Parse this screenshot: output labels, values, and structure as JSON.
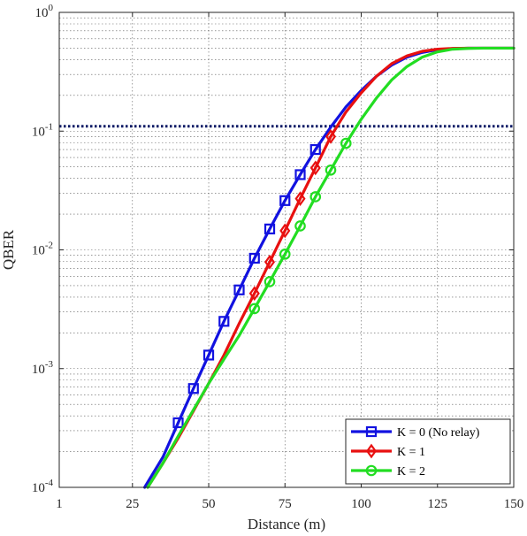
{
  "chart_data": {
    "type": "line",
    "xlabel": "Distance (m)",
    "ylabel": "QBER",
    "xlim": [
      1,
      150
    ],
    "ylim": [
      0.0001,
      1
    ],
    "yscale": "log",
    "grid": true,
    "legend_position": "bottom-right",
    "x_ticks": [
      {
        "value": 1,
        "label": "1"
      },
      {
        "value": 25,
        "label": "25"
      },
      {
        "value": 50,
        "label": "50"
      },
      {
        "value": 75,
        "label": "75"
      },
      {
        "value": 100,
        "label": "100"
      },
      {
        "value": 125,
        "label": "125"
      },
      {
        "value": 150,
        "label": "150"
      }
    ],
    "y_ticks": [
      {
        "value": 0.0001,
        "base": "10",
        "exp": "-4"
      },
      {
        "value": 0.001,
        "base": "10",
        "exp": "-3"
      },
      {
        "value": 0.01,
        "base": "10",
        "exp": "-2"
      },
      {
        "value": 0.1,
        "base": "10",
        "exp": "-1"
      },
      {
        "value": 1,
        "base": "10",
        "exp": "0"
      }
    ],
    "threshold": {
      "y": 0.11,
      "color": "#0c1a66"
    },
    "series": [
      {
        "name": "K = 0 (No relay)",
        "color": "#1212e0",
        "marker": "square",
        "x": [
          29,
          35,
          40,
          45,
          50,
          55,
          60,
          65,
          70,
          75,
          80,
          85,
          90,
          95,
          100,
          105,
          110,
          115,
          120,
          125,
          130,
          135,
          140,
          150
        ],
        "y": [
          0.0001,
          0.00018,
          0.00035,
          0.00068,
          0.0013,
          0.0025,
          0.0046,
          0.0085,
          0.015,
          0.026,
          0.043,
          0.07,
          0.108,
          0.16,
          0.22,
          0.29,
          0.36,
          0.42,
          0.46,
          0.485,
          0.495,
          0.5,
          0.5,
          0.5
        ],
        "markers": [
          [
            40,
            0.00035
          ],
          [
            45,
            0.00068
          ],
          [
            50,
            0.0013
          ],
          [
            55,
            0.0025
          ],
          [
            60,
            0.0046
          ],
          [
            65,
            0.0085
          ],
          [
            70,
            0.015
          ],
          [
            75,
            0.026
          ],
          [
            80,
            0.043
          ],
          [
            85,
            0.07
          ]
        ]
      },
      {
        "name": "K = 1",
        "color": "#e81010",
        "marker": "diamond",
        "x": [
          30,
          35,
          40,
          45,
          50,
          55,
          60,
          65,
          70,
          75,
          80,
          85,
          90,
          95,
          100,
          105,
          110,
          115,
          120,
          125,
          130,
          135,
          140,
          150
        ],
        "y": [
          0.0001,
          0.00016,
          0.00026,
          0.00044,
          0.00075,
          0.0013,
          0.0024,
          0.0043,
          0.0079,
          0.0145,
          0.027,
          0.049,
          0.09,
          0.145,
          0.21,
          0.29,
          0.37,
          0.43,
          0.47,
          0.49,
          0.497,
          0.5,
          0.5,
          0.5
        ],
        "markers": [
          [
            65,
            0.0043
          ],
          [
            70,
            0.0079
          ],
          [
            75,
            0.0145
          ],
          [
            80,
            0.027
          ],
          [
            85,
            0.049
          ],
          [
            90,
            0.09
          ]
        ]
      },
      {
        "name": "K = 2",
        "color": "#22dd22",
        "marker": "circle",
        "x": [
          30,
          35,
          40,
          45,
          50,
          55,
          60,
          65,
          70,
          75,
          80,
          85,
          90,
          95,
          100,
          105,
          110,
          115,
          120,
          125,
          130,
          135,
          140,
          150
        ],
        "y": [
          0.0001,
          0.00016,
          0.00027,
          0.00045,
          0.00075,
          0.0012,
          0.0019,
          0.0032,
          0.0054,
          0.0092,
          0.0159,
          0.028,
          0.047,
          0.079,
          0.126,
          0.19,
          0.27,
          0.35,
          0.42,
          0.465,
          0.49,
          0.497,
          0.5,
          0.5
        ],
        "markers": [
          [
            65,
            0.0032
          ],
          [
            70,
            0.0054
          ],
          [
            75,
            0.0092
          ],
          [
            80,
            0.0159
          ],
          [
            85,
            0.028
          ],
          [
            90,
            0.047
          ],
          [
            95,
            0.079
          ]
        ]
      }
    ]
  }
}
